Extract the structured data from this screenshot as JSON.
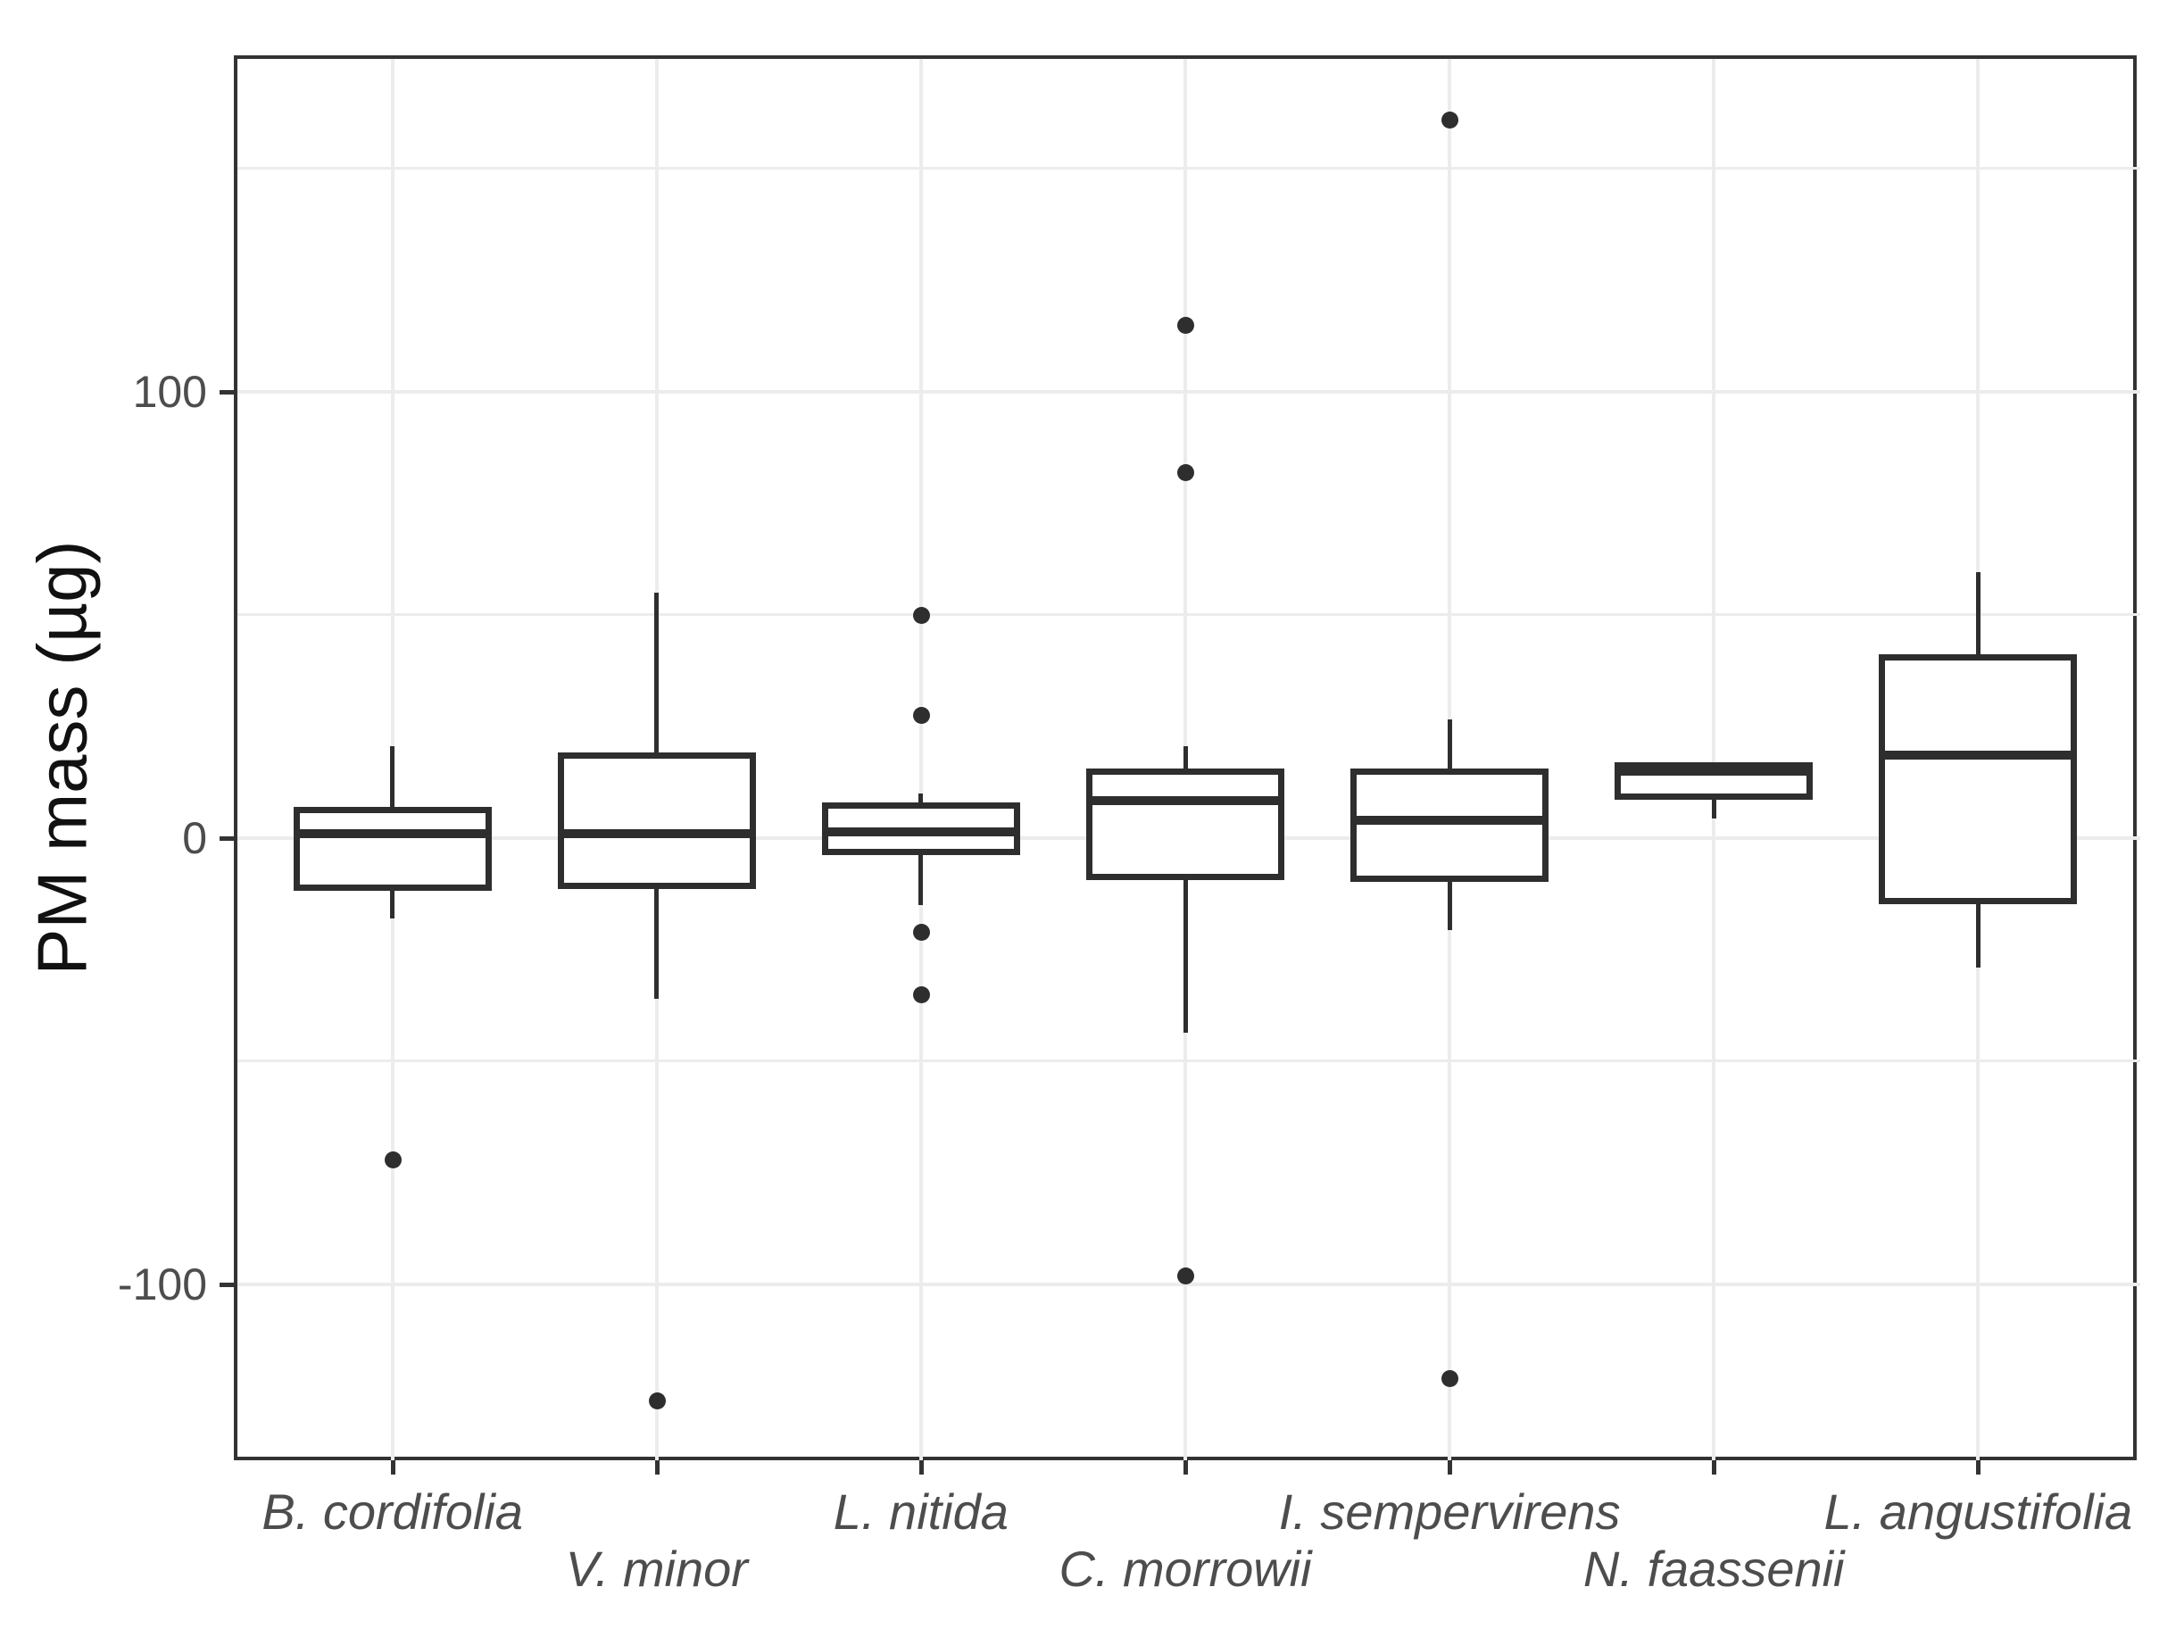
{
  "figure": {
    "background": "#ffffff"
  },
  "chart_data": {
    "type": "boxplot",
    "title": "",
    "xlabel": "",
    "ylabel": "PM mass (µg)",
    "categories": [
      "B. cordifolia",
      "V. minor",
      "L. nitida",
      "C. morrowii",
      "I. sempervirens",
      "N. faassenii",
      "L. angustifolia"
    ],
    "ylim": [
      -139.3,
      175.3
    ],
    "y_major_ticks": [
      100,
      0,
      -100
    ],
    "y_tick_labels": [
      "100",
      "0",
      "-100"
    ],
    "y_minor_gridlines": [
      150,
      50,
      -50
    ],
    "grid": true,
    "legend": "none",
    "boxes": [
      {
        "category": "B. cordifolia",
        "whisker_low": -18,
        "q1": -11,
        "median": 1,
        "q3": 6.5,
        "whisker_high": 20.5,
        "outliers": [
          -72
        ]
      },
      {
        "category": "V. minor",
        "whisker_low": -36,
        "q1": -10.5,
        "median": 1,
        "q3": 18.5,
        "whisker_high": 55,
        "outliers": [
          -126
        ]
      },
      {
        "category": "L. nitida",
        "whisker_low": -15,
        "q1": -3,
        "median": 1.5,
        "q3": 7.5,
        "whisker_high": 10,
        "outliers": [
          50,
          27.5,
          -21,
          -35
        ]
      },
      {
        "category": "C. morrowii",
        "whisker_low": -43.5,
        "q1": -8.5,
        "median": 8.5,
        "q3": 15,
        "whisker_high": 20.5,
        "outliers": [
          115,
          82,
          -98
        ]
      },
      {
        "category": "I. sempervirens",
        "whisker_low": -20.5,
        "q1": -9,
        "median": 4,
        "q3": 15,
        "whisker_high": 26.5,
        "outliers": [
          161,
          -121
        ]
      },
      {
        "category": "N. faassenii",
        "whisker_low": 4.5,
        "q1": 9.5,
        "median": 15,
        "q3": 16.5,
        "whisker_high": 16.5,
        "outliers": []
      },
      {
        "category": "L. angustifolia",
        "whisker_low": -29,
        "q1": -14,
        "median": 18.5,
        "q3": 40.5,
        "whisker_high": 59.5,
        "outliers": []
      }
    ],
    "style": {
      "box_stroke": "#2e2e2e",
      "box_fill": "#ffffff",
      "grid_color": "#ececec",
      "panel_border": "#333333",
      "tick_mark_color": "#333333",
      "tick_text_color": "#4d4d4d",
      "axis_title_color": "#111111",
      "background": "#ffffff"
    }
  }
}
